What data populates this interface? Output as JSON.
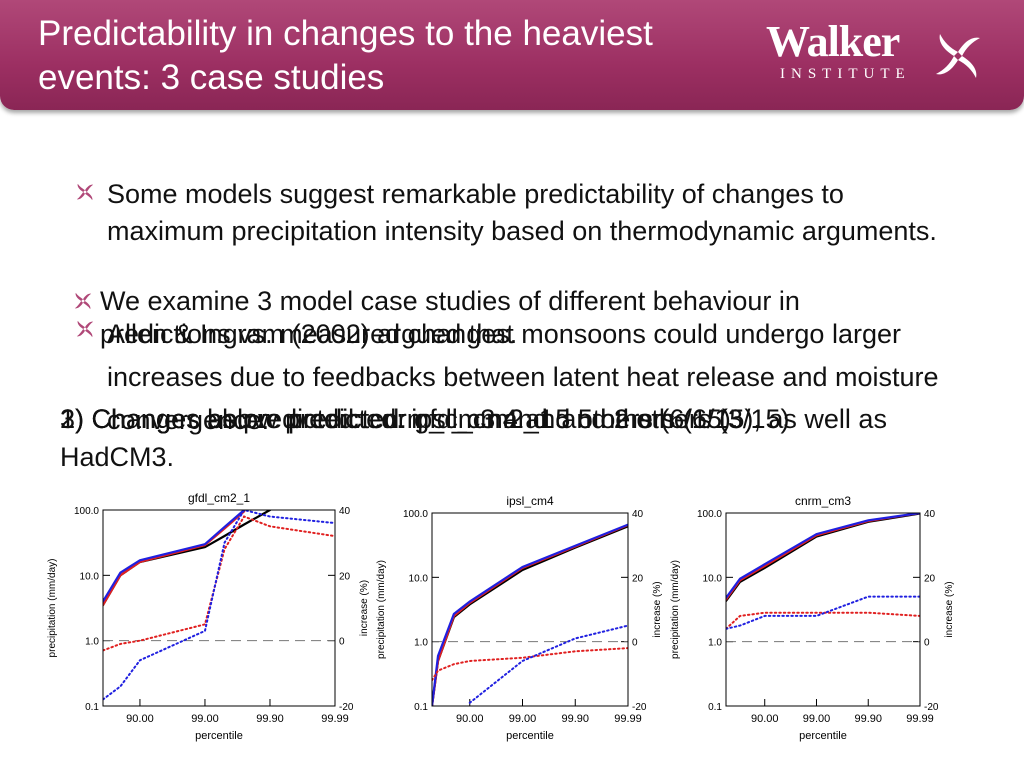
{
  "header": {
    "title": "Predictability in changes to the heaviest events: 3 case studies",
    "logo_word": "Walker",
    "logo_sub": "INSTITUTE"
  },
  "bullets": [
    "Some models  suggest remarkable predictability of changes to maximum precipitation intensity based on thermodynamic arguments.",
    "We examine 3 model case studies of different behaviour in predictions vs. measured changes.",
    "Allen & Ingram (2002) argued that monsoons could undergo larger increases due to feedbacks between latent heat release and moisture convergence."
  ],
  "numbered": [
    "1) Changes above predicted: gfdl_cm2_1 and 2 others (3/15)",
    "2) Changes below predicted: ipsl_cm4 and 5 others (6/15), as well as HadCM3.",
    "3) Changes as predicted: cnrm_cm3 and 5 others (6/15)."
  ],
  "chart_data": [
    {
      "type": "line",
      "title": "gfdl_cm2_1",
      "xlabel": "percentile",
      "ylabel": "precipitation (mm/day)",
      "y2label": "increase (%)",
      "xscale": "percentile-log",
      "yscale": "log",
      "xlim": [
        63,
        99.99
      ],
      "ylim": [
        0.1,
        100
      ],
      "y2lim": [
        -20,
        40
      ],
      "xticks": [
        {
          "value": 90,
          "label": "90.00"
        },
        {
          "value": 99,
          "label": "99.00"
        },
        {
          "value": 99.9,
          "label": "99.90"
        },
        {
          "value": 99.99,
          "label": "99.99"
        }
      ],
      "yticks": [
        {
          "value": 100,
          "label": "100.0"
        },
        {
          "value": 10,
          "label": "10.0"
        },
        {
          "value": 1,
          "label": "1.0"
        },
        0.1
      ],
      "y2ticks": [
        -20,
        0,
        20,
        40
      ],
      "reference_line": 1,
      "x": [
        63,
        80,
        90,
        99,
        99.5,
        99.75,
        99.9,
        99.99
      ],
      "series": [
        {
          "color": "#000000",
          "style": "solid",
          "values": [
            3.5,
            10,
            16,
            27,
            40,
            60,
            100,
            null
          ]
        },
        {
          "color": "#e02020",
          "style": "solid",
          "values": [
            3.5,
            10,
            16,
            29,
            52,
            95,
            null,
            null
          ]
        },
        {
          "color": "#2020e0",
          "style": "solid",
          "values": [
            4,
            11,
            17,
            30,
            55,
            100,
            null,
            null
          ]
        },
        {
          "color": "#e02020",
          "style": "dotted",
          "axis": "y2",
          "values": [
            -3,
            -1,
            0,
            5,
            28,
            38,
            35,
            32
          ]
        },
        {
          "color": "#2020e0",
          "style": "dotted",
          "axis": "y2",
          "values": [
            -18,
            -14,
            -6,
            3,
            30,
            40,
            38,
            36
          ]
        }
      ]
    },
    {
      "type": "line",
      "title": "ipsl_cm4",
      "xlabel": "percentile",
      "ylabel": "precipitation (mm/day)",
      "y2label": "increase (%)",
      "xscale": "percentile-log",
      "yscale": "log",
      "xlim": [
        48,
        99.99
      ],
      "ylim": [
        0.1,
        100
      ],
      "y2lim": [
        -20,
        40
      ],
      "xticks": [
        {
          "value": 90,
          "label": "90.00"
        },
        {
          "value": 99,
          "label": "99.00"
        },
        {
          "value": 99.9,
          "label": "99.90"
        },
        {
          "value": 99.99,
          "label": "99.99"
        }
      ],
      "yticks": [
        {
          "value": 100,
          "label": "100.0"
        },
        {
          "value": 10,
          "label": "10.0"
        },
        {
          "value": 1,
          "label": "1.0"
        },
        0.1
      ],
      "y2ticks": [
        -20,
        0,
        20,
        40
      ],
      "reference_line": 1,
      "x": [
        48,
        60,
        80,
        90,
        99,
        99.9,
        99.99
      ],
      "series": [
        {
          "color": "#000000",
          "style": "solid",
          "values": [
            0.1,
            0.5,
            2.4,
            3.8,
            13,
            29,
            62
          ]
        },
        {
          "color": "#e02020",
          "style": "solid",
          "values": [
            0.1,
            0.5,
            2.5,
            4,
            14,
            30,
            65
          ]
        },
        {
          "color": "#2020e0",
          "style": "solid",
          "values": [
            0.1,
            0.6,
            2.7,
            4.2,
            14.5,
            31,
            66
          ]
        },
        {
          "color": "#e02020",
          "style": "dotted",
          "axis": "y2",
          "values": [
            -12,
            -9,
            -7,
            -6,
            -5,
            -3,
            -2
          ]
        },
        {
          "color": "#2020e0",
          "style": "dotted",
          "axis": "y2",
          "values": [
            null,
            null,
            null,
            -19,
            -6,
            1,
            5
          ]
        }
      ]
    },
    {
      "type": "line",
      "title": "cnrm_cm3",
      "xlabel": "percentile",
      "ylabel": "precipitation (mm/day)",
      "y2label": "increase (%)",
      "xscale": "percentile-log",
      "yscale": "log",
      "xlim": [
        44,
        99.99
      ],
      "ylim": [
        0.1,
        100
      ],
      "y2lim": [
        -20,
        40
      ],
      "xticks": [
        {
          "value": 90,
          "label": "90.00"
        },
        {
          "value": 99,
          "label": "99.00"
        },
        {
          "value": 99.9,
          "label": "99.90"
        },
        {
          "value": 99.99,
          "label": "99.99"
        }
      ],
      "yticks": [
        {
          "value": 100,
          "label": "100.0"
        },
        {
          "value": 10,
          "label": "10.0"
        },
        {
          "value": 1,
          "label": "1.0"
        },
        0.1
      ],
      "y2ticks": [
        -20,
        0,
        20,
        40
      ],
      "reference_line": 1,
      "x": [
        44,
        70,
        90,
        99,
        99.9,
        99.99
      ],
      "series": [
        {
          "color": "#000000",
          "style": "solid",
          "values": [
            4.3,
            8.5,
            14,
            43,
            73,
            98
          ]
        },
        {
          "color": "#e02020",
          "style": "solid",
          "values": [
            4.5,
            9,
            15,
            45,
            75,
            100
          ]
        },
        {
          "color": "#2020e0",
          "style": "solid",
          "values": [
            4.8,
            9.5,
            16,
            47,
            77,
            100
          ]
        },
        {
          "color": "#e02020",
          "style": "dotted",
          "axis": "y2",
          "values": [
            4,
            8,
            9,
            9,
            9,
            8
          ]
        },
        {
          "color": "#2020e0",
          "style": "dotted",
          "axis": "y2",
          "values": [
            4,
            5,
            8,
            8,
            14,
            14
          ]
        }
      ]
    }
  ]
}
